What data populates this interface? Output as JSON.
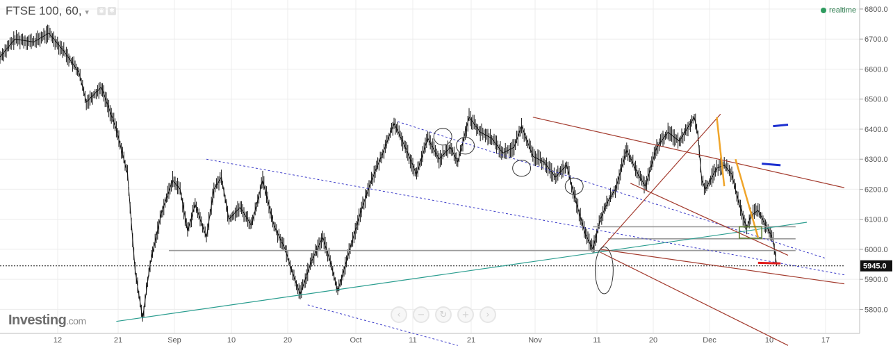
{
  "header": {
    "title": "FTSE 100, 60,",
    "dropdown_icon": "caret-down-icon",
    "icons": [
      "eye-icon",
      "settings-icon"
    ],
    "status": "realtime",
    "status_color": "#2e9b5f"
  },
  "branding": {
    "name": "Investing",
    "suffix": ".com"
  },
  "nav_buttons": [
    {
      "name": "scroll-left-button",
      "glyph": "‹"
    },
    {
      "name": "zoom-out-button",
      "glyph": "−"
    },
    {
      "name": "reset-button",
      "glyph": "↻"
    },
    {
      "name": "zoom-in-button",
      "glyph": "+"
    },
    {
      "name": "scroll-right-button",
      "glyph": "›"
    }
  ],
  "chart_data": {
    "type": "line",
    "instrument": "FTSE 100",
    "interval": "60",
    "ylim": [
      5720,
      6830
    ],
    "y_ticks": [
      "6800.0",
      "6700.0",
      "6600.0",
      "6500.0",
      "6400.0",
      "6300.0",
      "6200.0",
      "6100.0",
      "6000.0",
      "5900.0",
      "5800.0"
    ],
    "x_ticks": [
      "12",
      "21",
      "Sep",
      "10",
      "20",
      "Oct",
      "11",
      "21",
      "Nov",
      "11",
      "20",
      "Dec",
      "10",
      "17"
    ],
    "last_price": "5945.0",
    "last_price_value": 5945.0,
    "grid": true,
    "price_key_points": [
      [
        0,
        6640
      ],
      [
        4,
        6700
      ],
      [
        9,
        6690
      ],
      [
        13,
        6720
      ],
      [
        17,
        6660
      ],
      [
        21,
        6590
      ],
      [
        23,
        6490
      ],
      [
        27,
        6540
      ],
      [
        31,
        6400
      ],
      [
        34,
        6250
      ],
      [
        36,
        5930
      ],
      [
        38,
        5770
      ],
      [
        40,
        5950
      ],
      [
        43,
        6120
      ],
      [
        46,
        6230
      ],
      [
        48,
        6200
      ],
      [
        50,
        6060
      ],
      [
        52,
        6150
      ],
      [
        55,
        6040
      ],
      [
        57,
        6200
      ],
      [
        59,
        6240
      ],
      [
        61,
        6100
      ],
      [
        64,
        6140
      ],
      [
        67,
        6080
      ],
      [
        70,
        6230
      ],
      [
        73,
        6080
      ],
      [
        76,
        6000
      ],
      [
        78,
        5920
      ],
      [
        80,
        5850
      ],
      [
        83,
        5960
      ],
      [
        86,
        6040
      ],
      [
        88,
        5960
      ],
      [
        90,
        5860
      ],
      [
        93,
        5990
      ],
      [
        96,
        6120
      ],
      [
        99,
        6230
      ],
      [
        102,
        6320
      ],
      [
        105,
        6420
      ],
      [
        108,
        6340
      ],
      [
        111,
        6250
      ],
      [
        114,
        6370
      ],
      [
        117,
        6300
      ],
      [
        120,
        6340
      ],
      [
        122,
        6290
      ],
      [
        125,
        6440
      ],
      [
        128,
        6390
      ],
      [
        131,
        6370
      ],
      [
        134,
        6320
      ],
      [
        137,
        6340
      ],
      [
        139,
        6410
      ],
      [
        142,
        6310
      ],
      [
        145,
        6290
      ],
      [
        148,
        6240
      ],
      [
        151,
        6280
      ],
      [
        153,
        6180
      ],
      [
        156,
        6050
      ],
      [
        158,
        6000
      ],
      [
        160,
        6100
      ],
      [
        162,
        6160
      ],
      [
        164,
        6200
      ],
      [
        167,
        6330
      ],
      [
        170,
        6250
      ],
      [
        172,
        6210
      ],
      [
        175,
        6340
      ],
      [
        178,
        6390
      ],
      [
        181,
        6360
      ],
      [
        184,
        6420
      ],
      [
        185,
        6440
      ],
      [
        186,
        6380
      ],
      [
        187,
        6230
      ],
      [
        188,
        6200
      ],
      [
        191,
        6270
      ],
      [
        193,
        6280
      ],
      [
        195,
        6250
      ],
      [
        197,
        6150
      ],
      [
        199,
        6070
      ],
      [
        200,
        6110
      ],
      [
        202,
        6130
      ],
      [
        204,
        6080
      ],
      [
        205,
        6060
      ],
      [
        206,
        6030
      ],
      [
        207,
        5945
      ]
    ],
    "drawings": {
      "horizontal_lines": [
        {
          "price": 6075,
          "x_from": 158,
          "x_to": 212,
          "color": "#9a9a9a"
        },
        {
          "price": 6035,
          "x_from": 162,
          "x_to": 212,
          "color": "#9a9a9a"
        },
        {
          "price": 5996,
          "x_from": 45,
          "x_to": 212,
          "color": "#9a9a9a"
        },
        {
          "price": 5945,
          "x_from": 0,
          "x_to": 225,
          "color": "#111111",
          "style": "dotted"
        }
      ],
      "trend_lines": [
        {
          "from": [
            31,
            5760
          ],
          "to": [
            215,
            6090
          ],
          "color": "#2a9d8f"
        }
      ],
      "pitchfork_blue": [
        {
          "from": [
            55,
            6300
          ],
          "to": [
            225,
            5915
          ]
        },
        {
          "from": [
            106,
            6425
          ],
          "to": [
            220,
            5970
          ]
        },
        {
          "from": [
            82,
            5815
          ],
          "to": [
            122,
            5680
          ]
        }
      ],
      "pitchfork_red": [
        {
          "from": [
            142,
            6440
          ],
          "to": [
            225,
            6205
          ]
        },
        {
          "from": [
            160,
            6000
          ],
          "to": [
            225,
            5885
          ]
        },
        {
          "from": [
            160,
            5990
          ],
          "to": [
            210,
            5680
          ]
        },
        {
          "from": [
            168,
            6220
          ],
          "to": [
            210,
            5980
          ]
        },
        {
          "from": [
            160,
            6000
          ],
          "to": [
            192,
            6450
          ]
        }
      ],
      "orange_segments": [
        {
          "from": [
            191,
            6440
          ],
          "to": [
            193,
            6210
          ]
        },
        {
          "from": [
            196,
            6300
          ],
          "to": [
            202,
            6040
          ]
        }
      ],
      "blue_markers": [
        {
          "from": [
            206,
            6410
          ],
          "to": [
            210,
            6415
          ]
        },
        {
          "from": [
            203,
            6285
          ],
          "to": [
            208,
            6280
          ]
        }
      ],
      "red_marker": {
        "from": [
          202,
          5955
        ],
        "to": [
          208,
          5953
        ]
      },
      "ellipses": [
        {
          "cx": 118,
          "cy": 6375,
          "rx": 2.4,
          "ry": 28
        },
        {
          "cx": 124,
          "cy": 6345,
          "rx": 2.4,
          "ry": 28
        },
        {
          "cx": 139,
          "cy": 6270,
          "rx": 2.4,
          "ry": 27
        },
        {
          "cx": 153,
          "cy": 6210,
          "rx": 2.4,
          "ry": 27
        },
        {
          "cx": 161,
          "cy": 5930,
          "rx": 2.4,
          "ry": 78
        }
      ],
      "green_box": {
        "x_from": 197,
        "x_to": 203,
        "p_from": 6037,
        "p_to": 6075
      }
    }
  }
}
